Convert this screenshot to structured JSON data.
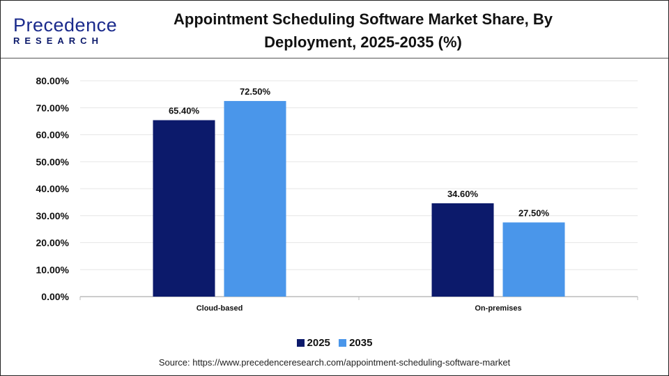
{
  "logo": {
    "top": "Precedence",
    "bottom": "RESEARCH"
  },
  "title": "Appointment Scheduling Software Market Share, By Deployment, 2025-2035 (%)",
  "source": "Source: https://www.precedenceresearch.com/appointment-scheduling-software-market",
  "chart_data": {
    "type": "bar",
    "title": "Appointment Scheduling Software Market Share, By Deployment, 2025-2035 (%)",
    "categories": [
      "Cloud-based",
      "On-premises"
    ],
    "series": [
      {
        "name": "2025",
        "values": [
          65.4,
          34.6
        ],
        "labels": [
          "65.40%",
          "34.60%"
        ],
        "color": "#0c1a6b"
      },
      {
        "name": "2035",
        "values": [
          72.5,
          27.5
        ],
        "labels": [
          "72.50%",
          "27.50%"
        ],
        "color": "#4a96ea"
      }
    ],
    "yticks": [
      "0.00%",
      "10.00%",
      "20.00%",
      "30.00%",
      "40.00%",
      "50.00%",
      "60.00%",
      "70.00%",
      "80.00%"
    ],
    "ylim": [
      0,
      80
    ],
    "grid": true,
    "legend": "bottom"
  }
}
